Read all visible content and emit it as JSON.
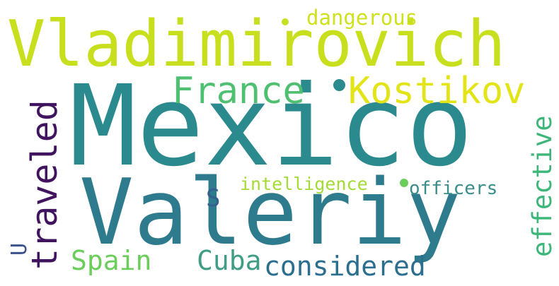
{
  "words": [
    {
      "text": "Mexico",
      "color": "#2a8a8e"
    },
    {
      "text": "Valeriy",
      "color": "#2f7b8e"
    },
    {
      "text": "Vladimirovich",
      "color": "#c8df1e"
    },
    {
      "text": "France",
      "color": "#4fbf71"
    },
    {
      "text": "Kostikov",
      "color": "#e3e418"
    },
    {
      "text": "traveled",
      "color": "#40145f"
    },
    {
      "text": "effective",
      "color": "#3db779"
    },
    {
      "text": "dangerous",
      "color": "#cfe11d"
    },
    {
      "text": "intelligence",
      "color": "#a5db36"
    },
    {
      "text": "officers",
      "color": "#3b8c8c"
    },
    {
      "text": "Spain",
      "color": "#6bcd5a"
    },
    {
      "text": "Cuba",
      "color": "#3f9c85"
    },
    {
      "text": "considered",
      "color": "#2b6e8e"
    },
    {
      "text": "S",
      "color": "#355f8d"
    },
    {
      "text": "U",
      "color": "#3b528b"
    }
  ]
}
